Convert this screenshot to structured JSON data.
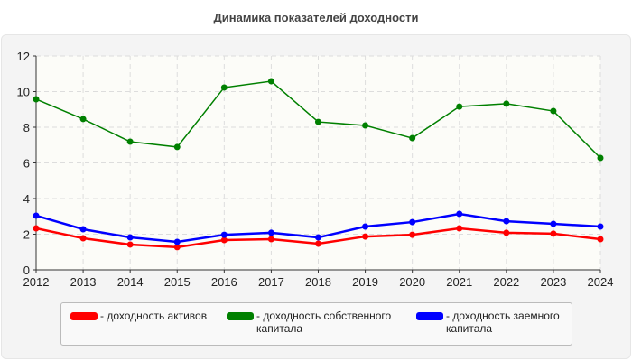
{
  "chart_data": {
    "type": "line",
    "title": "Динамика показателей доходности",
    "categories": [
      "2012",
      "2013",
      "2014",
      "2015",
      "2016",
      "2017",
      "2018",
      "2019",
      "2020",
      "2021",
      "2022",
      "2023",
      "2024"
    ],
    "ylim": [
      0,
      12
    ],
    "yticks": [
      "0",
      "2",
      "4",
      "6",
      "8",
      "10",
      "12"
    ],
    "grid": true,
    "legend_position": "bottom",
    "series": [
      {
        "name": "- доходность активов",
        "color": "#ff0000",
        "values": [
          2.33,
          1.77,
          1.42,
          1.27,
          1.67,
          1.72,
          1.47,
          1.87,
          1.97,
          2.33,
          2.08,
          2.03,
          1.72
        ]
      },
      {
        "name": "- доходность собственного капитала",
        "color": "#008000",
        "values": [
          9.57,
          8.46,
          7.19,
          6.89,
          10.23,
          10.58,
          8.3,
          8.1,
          7.39,
          9.16,
          9.32,
          8.91,
          6.28
        ]
      },
      {
        "name": "- доходность заемного капитала",
        "color": "#0000ff",
        "values": [
          3.04,
          2.28,
          1.82,
          1.57,
          1.97,
          2.08,
          1.82,
          2.43,
          2.68,
          3.14,
          2.73,
          2.58,
          2.43
        ]
      }
    ]
  }
}
